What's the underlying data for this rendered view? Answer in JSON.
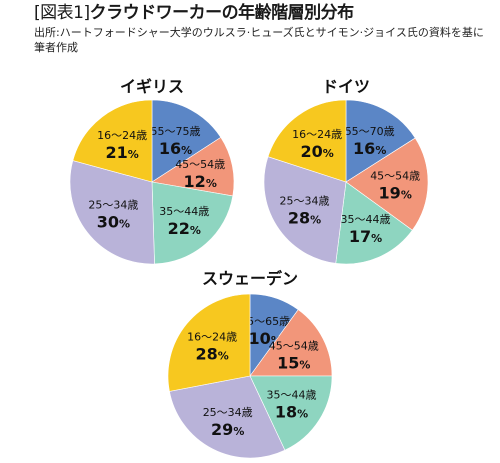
{
  "header": {
    "title_tag": "[図表1]",
    "title_main": "クラウドワーカーの年齢階層別分布",
    "source": "出所:ハートフォードシャー大学のウルスラ·ヒューズ氏とサイモン·ジョイス氏の資料を基に筆者作成"
  },
  "colors": {
    "16-24": "#f7c81f",
    "25-34": "#b9b3d9",
    "35-44": "#8ed5c0",
    "45-54": "#f2967a",
    "55+": "#5b86c6"
  },
  "chart_data": [
    {
      "type": "pie",
      "title": "イギリス",
      "unit": "%",
      "start_angle_deg": 0,
      "direction": "clockwise",
      "slices": [
        {
          "label": "55〜75歳",
          "value": 16,
          "color_key": "55+"
        },
        {
          "label": "45〜54歳",
          "value": 12,
          "color_key": "45-54"
        },
        {
          "label": "35〜44歳",
          "value": 22,
          "color_key": "35-44"
        },
        {
          "label": "25〜34歳",
          "value": 30,
          "color_key": "25-34"
        },
        {
          "label": "16〜24歳",
          "value": 21,
          "color_key": "16-24"
        }
      ]
    },
    {
      "type": "pie",
      "title": "ドイツ",
      "unit": "%",
      "start_angle_deg": 0,
      "direction": "clockwise",
      "slices": [
        {
          "label": "55〜70歳",
          "value": 16,
          "color_key": "55+"
        },
        {
          "label": "45〜54歳",
          "value": 19,
          "color_key": "45-54"
        },
        {
          "label": "35〜44歳",
          "value": 17,
          "color_key": "35-44"
        },
        {
          "label": "25〜34歳",
          "value": 28,
          "color_key": "25-34"
        },
        {
          "label": "16〜24歳",
          "value": 20,
          "color_key": "16-24"
        }
      ]
    },
    {
      "type": "pie",
      "title": "スウェーデン",
      "unit": "%",
      "start_angle_deg": 0,
      "direction": "clockwise",
      "slices": [
        {
          "label": "55〜65歳",
          "value": 10,
          "color_key": "55+"
        },
        {
          "label": "45〜54歳",
          "value": 15,
          "color_key": "45-54"
        },
        {
          "label": "35〜44歳",
          "value": 18,
          "color_key": "35-44"
        },
        {
          "label": "25〜34歳",
          "value": 29,
          "color_key": "25-34"
        },
        {
          "label": "16〜24歳",
          "value": 28,
          "color_key": "16-24"
        }
      ]
    }
  ]
}
